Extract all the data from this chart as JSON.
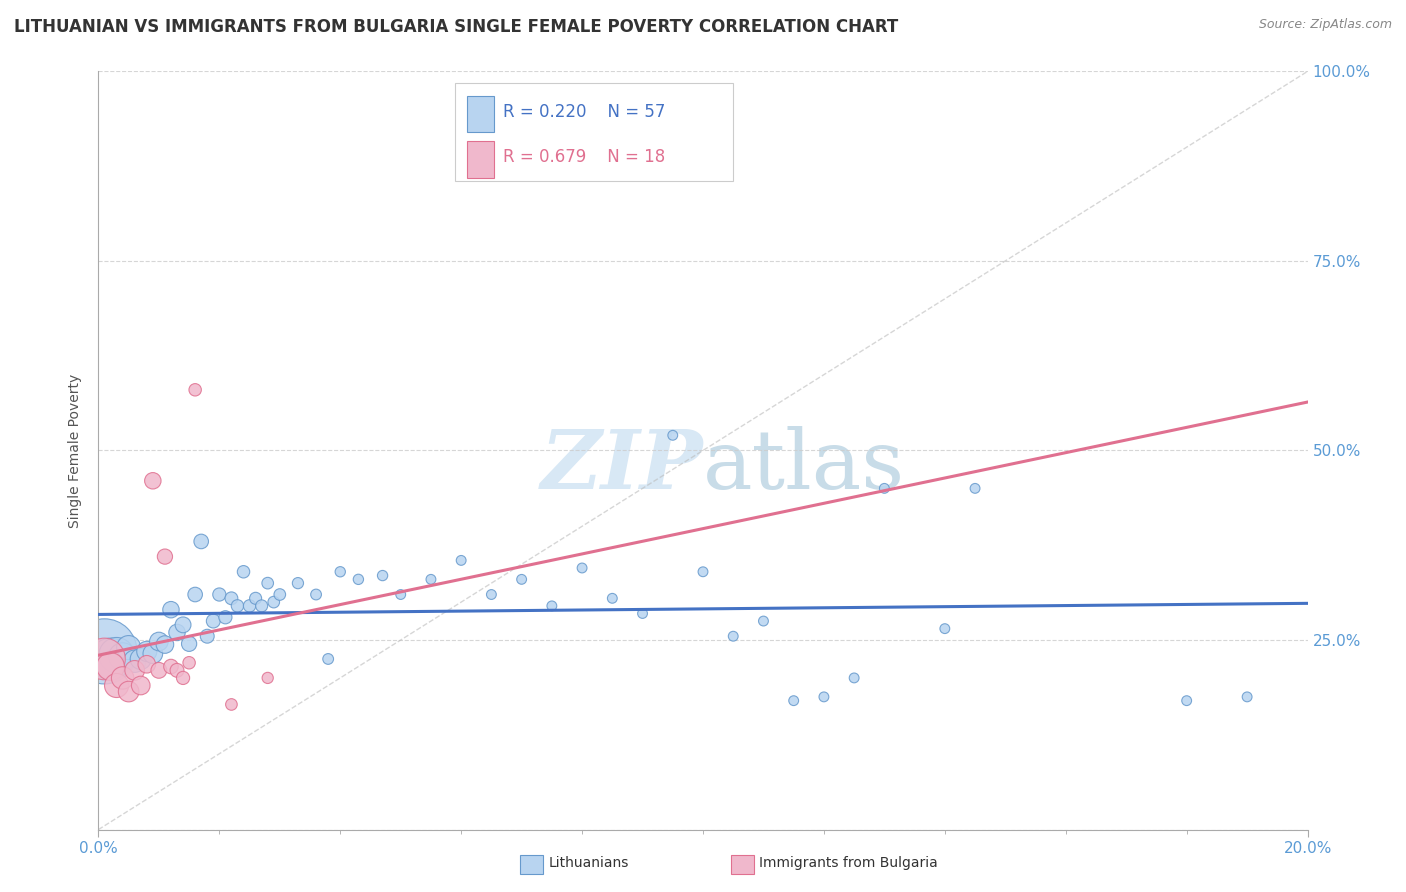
{
  "title": "LITHUANIAN VS IMMIGRANTS FROM BULGARIA SINGLE FEMALE POVERTY CORRELATION CHART",
  "source": "Source: ZipAtlas.com",
  "ylabel": "Single Female Poverty",
  "xlim": [
    0.0,
    0.2
  ],
  "ylim": [
    0.0,
    1.0
  ],
  "yticks": [
    0.0,
    0.25,
    0.5,
    0.75,
    1.0
  ],
  "ytick_labels": [
    "",
    "25.0%",
    "50.0%",
    "75.0%",
    "100.0%"
  ],
  "xtick_labels": [
    "0.0%",
    "20.0%"
  ],
  "legend_entries": [
    {
      "label": "Lithuanians",
      "color": "#b8d4f0"
    },
    {
      "label": "Immigrants from Bulgaria",
      "color": "#f0b8cc"
    }
  ],
  "R_blue": 0.22,
  "N_blue": 57,
  "R_pink": 0.679,
  "N_pink": 18,
  "blue_line_color": "#4472c4",
  "pink_line_color": "#e07090",
  "blue_scatter_face": "#b8d4f0",
  "blue_scatter_edge": "#6699cc",
  "pink_scatter_face": "#f0b8cc",
  "pink_scatter_edge": "#e07090",
  "watermark_color": "#d8e8f5",
  "grid_color": "#cccccc",
  "tick_color": "#5b9bd5",
  "title_fontsize": 12,
  "label_fontsize": 10,
  "tick_fontsize": 11,
  "blue_points": [
    [
      0.001,
      0.235
    ],
    [
      0.002,
      0.225
    ],
    [
      0.003,
      0.23
    ],
    [
      0.004,
      0.228
    ],
    [
      0.005,
      0.24
    ],
    [
      0.006,
      0.222
    ],
    [
      0.007,
      0.225
    ],
    [
      0.008,
      0.235
    ],
    [
      0.009,
      0.232
    ],
    [
      0.01,
      0.248
    ],
    [
      0.011,
      0.244
    ],
    [
      0.012,
      0.29
    ],
    [
      0.013,
      0.26
    ],
    [
      0.014,
      0.27
    ],
    [
      0.015,
      0.245
    ],
    [
      0.016,
      0.31
    ],
    [
      0.017,
      0.38
    ],
    [
      0.018,
      0.255
    ],
    [
      0.019,
      0.275
    ],
    [
      0.02,
      0.31
    ],
    [
      0.021,
      0.28
    ],
    [
      0.022,
      0.305
    ],
    [
      0.023,
      0.295
    ],
    [
      0.024,
      0.34
    ],
    [
      0.025,
      0.295
    ],
    [
      0.026,
      0.305
    ],
    [
      0.027,
      0.295
    ],
    [
      0.028,
      0.325
    ],
    [
      0.029,
      0.3
    ],
    [
      0.03,
      0.31
    ],
    [
      0.033,
      0.325
    ],
    [
      0.036,
      0.31
    ],
    [
      0.038,
      0.225
    ],
    [
      0.04,
      0.34
    ],
    [
      0.043,
      0.33
    ],
    [
      0.047,
      0.335
    ],
    [
      0.05,
      0.31
    ],
    [
      0.055,
      0.33
    ],
    [
      0.06,
      0.355
    ],
    [
      0.065,
      0.31
    ],
    [
      0.07,
      0.33
    ],
    [
      0.075,
      0.295
    ],
    [
      0.08,
      0.345
    ],
    [
      0.085,
      0.305
    ],
    [
      0.09,
      0.285
    ],
    [
      0.095,
      0.52
    ],
    [
      0.1,
      0.34
    ],
    [
      0.105,
      0.255
    ],
    [
      0.11,
      0.275
    ],
    [
      0.115,
      0.17
    ],
    [
      0.12,
      0.175
    ],
    [
      0.125,
      0.2
    ],
    [
      0.13,
      0.45
    ],
    [
      0.14,
      0.265
    ],
    [
      0.145,
      0.45
    ],
    [
      0.18,
      0.17
    ],
    [
      0.19,
      0.175
    ]
  ],
  "pink_points": [
    [
      0.001,
      0.225
    ],
    [
      0.002,
      0.215
    ],
    [
      0.003,
      0.19
    ],
    [
      0.004,
      0.2
    ],
    [
      0.005,
      0.182
    ],
    [
      0.006,
      0.21
    ],
    [
      0.007,
      0.19
    ],
    [
      0.008,
      0.218
    ],
    [
      0.009,
      0.46
    ],
    [
      0.01,
      0.21
    ],
    [
      0.011,
      0.36
    ],
    [
      0.012,
      0.215
    ],
    [
      0.013,
      0.21
    ],
    [
      0.014,
      0.2
    ],
    [
      0.015,
      0.22
    ],
    [
      0.016,
      0.58
    ],
    [
      0.022,
      0.165
    ],
    [
      0.028,
      0.2
    ]
  ],
  "blue_sizes": [
    2200,
    900,
    650,
    400,
    300,
    260,
    230,
    210,
    200,
    180,
    160,
    140,
    140,
    130,
    120,
    110,
    110,
    100,
    100,
    90,
    90,
    85,
    80,
    80,
    80,
    75,
    75,
    70,
    70,
    70,
    65,
    60,
    60,
    55,
    55,
    55,
    50,
    50,
    50,
    50,
    50,
    50,
    50,
    50,
    50,
    50,
    50,
    50,
    50,
    50,
    50,
    50,
    50,
    50,
    50,
    50,
    50
  ],
  "pink_sizes": [
    900,
    400,
    300,
    260,
    220,
    200,
    180,
    160,
    140,
    130,
    120,
    110,
    100,
    90,
    80,
    80,
    70,
    65
  ]
}
